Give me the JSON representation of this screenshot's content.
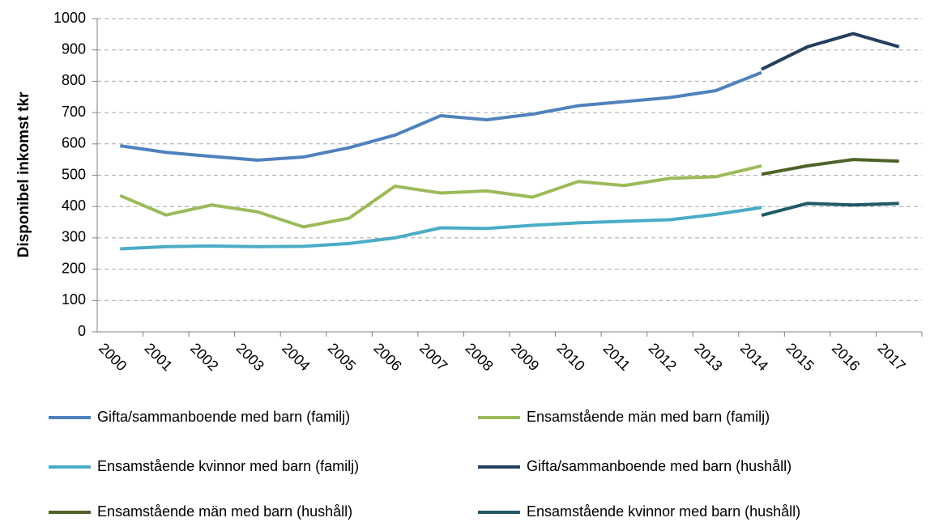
{
  "chart_data": {
    "type": "line",
    "y_label": "Disponibel inkomst tkr",
    "categories": [
      "2000",
      "2001",
      "2002",
      "2003",
      "2004",
      "2005",
      "2006",
      "2007",
      "2008",
      "2009",
      "2010",
      "2011",
      "2012",
      "2013",
      "2014",
      "2015",
      "2016",
      "2017"
    ],
    "ylim": [
      0,
      1000
    ],
    "yticks": [
      0,
      100,
      200,
      300,
      400,
      500,
      600,
      700,
      800,
      900,
      1000
    ],
    "grid": true,
    "legend": "bottom",
    "series": [
      {
        "name": "Gifta/sammanboende med barn (familj)",
        "color": "#4f81bd",
        "values": [
          594,
          573,
          560,
          548,
          558,
          588,
          628,
          690,
          677,
          695,
          722,
          735,
          748,
          770,
          828,
          null,
          null,
          null
        ]
      },
      {
        "name": "Ensamstående män med barn (familj)",
        "color": "#9bbb59",
        "values": [
          435,
          373,
          405,
          383,
          335,
          363,
          465,
          443,
          450,
          430,
          480,
          467,
          490,
          495,
          530,
          null,
          null,
          null
        ]
      },
      {
        "name": "Ensamstående kvinnor med barn (familj)",
        "color": "#4bacc6",
        "values": [
          265,
          272,
          274,
          272,
          273,
          282,
          300,
          332,
          330,
          340,
          348,
          353,
          358,
          375,
          397,
          null,
          null,
          null
        ]
      },
      {
        "name": "Gifta/sammanboende med barn (hushåll)",
        "color": "#243f60",
        "values": [
          null,
          null,
          null,
          null,
          null,
          null,
          null,
          null,
          null,
          null,
          null,
          null,
          null,
          null,
          838,
          910,
          952,
          910
        ]
      },
      {
        "name": "Ensamstående män med barn (hushåll)",
        "color": "#4f6228",
        "values": [
          null,
          null,
          null,
          null,
          null,
          null,
          null,
          null,
          null,
          null,
          null,
          null,
          null,
          null,
          503,
          530,
          550,
          545
        ]
      },
      {
        "name": "Ensamstående kvinnor med barn (hushåll)",
        "color": "#215968",
        "values": [
          null,
          null,
          null,
          null,
          null,
          null,
          null,
          null,
          null,
          null,
          null,
          null,
          null,
          null,
          372,
          410,
          405,
          410
        ]
      }
    ]
  }
}
